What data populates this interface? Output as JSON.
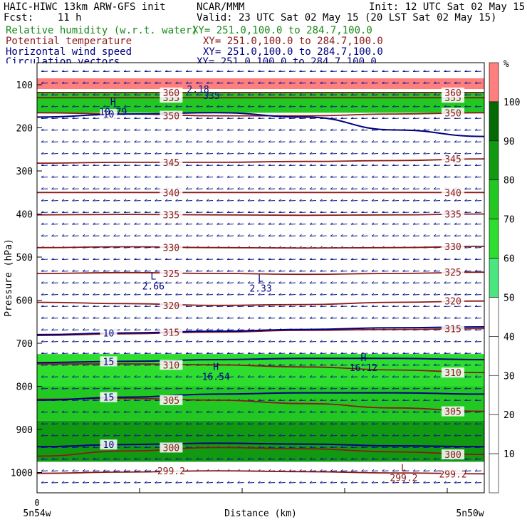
{
  "header": {
    "line1_left": "HAIC-HIWC 13km ARW-GFS init",
    "line1_mid": "NCAR/MMM",
    "line1_right": "Init: 12 UTC Sat 02 May 15",
    "line2_left": "Fcst:    11 h",
    "line2_right": "Valid: 23 UTC Sat 02 May 15 (20 LST Sat 02 May 15)",
    "fields": [
      {
        "name": "Relative humidity (w.r.t. water)",
        "xy": "XY= 251.0,100.0 to 284.7,100.0",
        "color": "#1a8a1a"
      },
      {
        "name": "Potential temperature",
        "xy": "XY= 251.0,100.0 to 284.7,100.0",
        "color": "#8b1a1a"
      },
      {
        "name": "Horizontal wind speed",
        "xy": "XY= 251.0,100.0 to 284.7,100.0",
        "color": "#000080"
      },
      {
        "name": "Circulation vectors",
        "xy": "XY= 251.0,100.0 to 284.7,100.0",
        "color": "#000080"
      }
    ]
  },
  "colorbar": {
    "unit": "%",
    "ticks": [
      10,
      20,
      30,
      40,
      50,
      60,
      70,
      80,
      90,
      100
    ],
    "colors": [
      "#ffffff",
      "#ffffff",
      "#ffffff",
      "#ffffff",
      "#ffffff",
      "#4be67f",
      "#2ede2e",
      "#22c722",
      "#119a11",
      "#056a05",
      "#ff7f7f"
    ]
  },
  "chart_data": {
    "type": "cross-section",
    "ylabel": "Pressure (hPa)",
    "xlabel": "Distance (km)",
    "x_tick_labels": [
      "0"
    ],
    "x_endpoint_labels": [
      "5n54w",
      "5n50w"
    ],
    "y_ticks": [
      100,
      200,
      300,
      400,
      500,
      600,
      700,
      800,
      900,
      1000
    ],
    "ylim": [
      1050,
      85
    ],
    "xlim": [
      0,
      100
    ],
    "theta_contours": [
      {
        "label": "299.2",
        "p": [
          1002,
          999,
          996,
          998,
          1001,
          1003
        ]
      },
      {
        "label": "300",
        "p": [
          962,
          950,
          942,
          945,
          952,
          958
        ]
      },
      {
        "label": "305",
        "p": [
          830,
          828,
          832,
          840,
          850,
          858
        ]
      },
      {
        "label": "310",
        "p": [
          748,
          748,
          750,
          755,
          762,
          768
        ]
      },
      {
        "label": "315",
        "p": [
          682,
          678,
          674,
          670,
          668,
          666
        ]
      },
      {
        "label": "320",
        "p": [
          605,
          608,
          612,
          610,
          605,
          602
        ]
      },
      {
        "label": "325",
        "p": [
          538,
          536,
          538,
          540,
          538,
          535
        ]
      },
      {
        "label": "330",
        "p": [
          478,
          476,
          478,
          479,
          478,
          475
        ]
      },
      {
        "label": "335",
        "p": [
          402,
          401,
          402,
          403,
          402,
          400
        ]
      },
      {
        "label": "340",
        "p": [
          350,
          350,
          350,
          350,
          350,
          350
        ]
      },
      {
        "label": "345",
        "p": [
          282,
          280,
          280,
          278,
          276,
          272
        ]
      },
      {
        "label": "350",
        "p": [
          165,
          168,
          172,
          172,
          168,
          165
        ]
      },
      {
        "label": "355",
        "p": [
          130,
          130,
          130,
          130,
          130,
          130
        ]
      },
      {
        "label": "360",
        "p": [
          118,
          118,
          118,
          118,
          118,
          118
        ]
      }
    ],
    "wind_contours": [
      {
        "label": "10",
        "p": [
          175,
          168,
          165,
          175,
          205,
          220
        ]
      },
      {
        "label": "10",
        "p": [
          680,
          676,
          672,
          668,
          664,
          662
        ]
      },
      {
        "label": "15",
        "p": [
          745,
          742,
          738,
          735,
          735,
          738
        ]
      },
      {
        "label": "15",
        "p": [
          832,
          825,
          818,
          815,
          815,
          818
        ]
      },
      {
        "label": "10",
        "p": [
          940,
          935,
          932,
          934,
          938,
          940
        ]
      }
    ],
    "extrema": [
      {
        "type": "H",
        "value": "10.79",
        "x": 17,
        "p": 150
      },
      {
        "type": "L",
        "value": "2.66",
        "x": 26,
        "p": 555
      },
      {
        "type": "L",
        "value": "2.33",
        "x": 50,
        "p": 560
      },
      {
        "type": "H",
        "value": "16.12",
        "x": 73,
        "p": 745
      },
      {
        "type": "H",
        "value": "16.54",
        "x": 40,
        "p": 765
      },
      {
        "type": "L",
        "value": "299.2",
        "x": 82,
        "p": 1000
      }
    ],
    "inline_labels": [
      {
        "text": "2.18",
        "x": 36,
        "p": 110
      },
      {
        "text": "335",
        "x": 39,
        "p": 125
      }
    ],
    "rh_regions": [
      {
        "value": 100,
        "p_top": 85,
        "p_bottom": 110
      },
      {
        "value": 70,
        "p_top": 118,
        "p_bottom": 165
      },
      {
        "value": 60,
        "p_top": 725,
        "p_bottom": 800
      },
      {
        "value": 70,
        "p_top": 800,
        "p_bottom": 880
      },
      {
        "value": 80,
        "p_top": 880,
        "p_bottom": 975
      }
    ],
    "vector_direction": "easterly"
  }
}
